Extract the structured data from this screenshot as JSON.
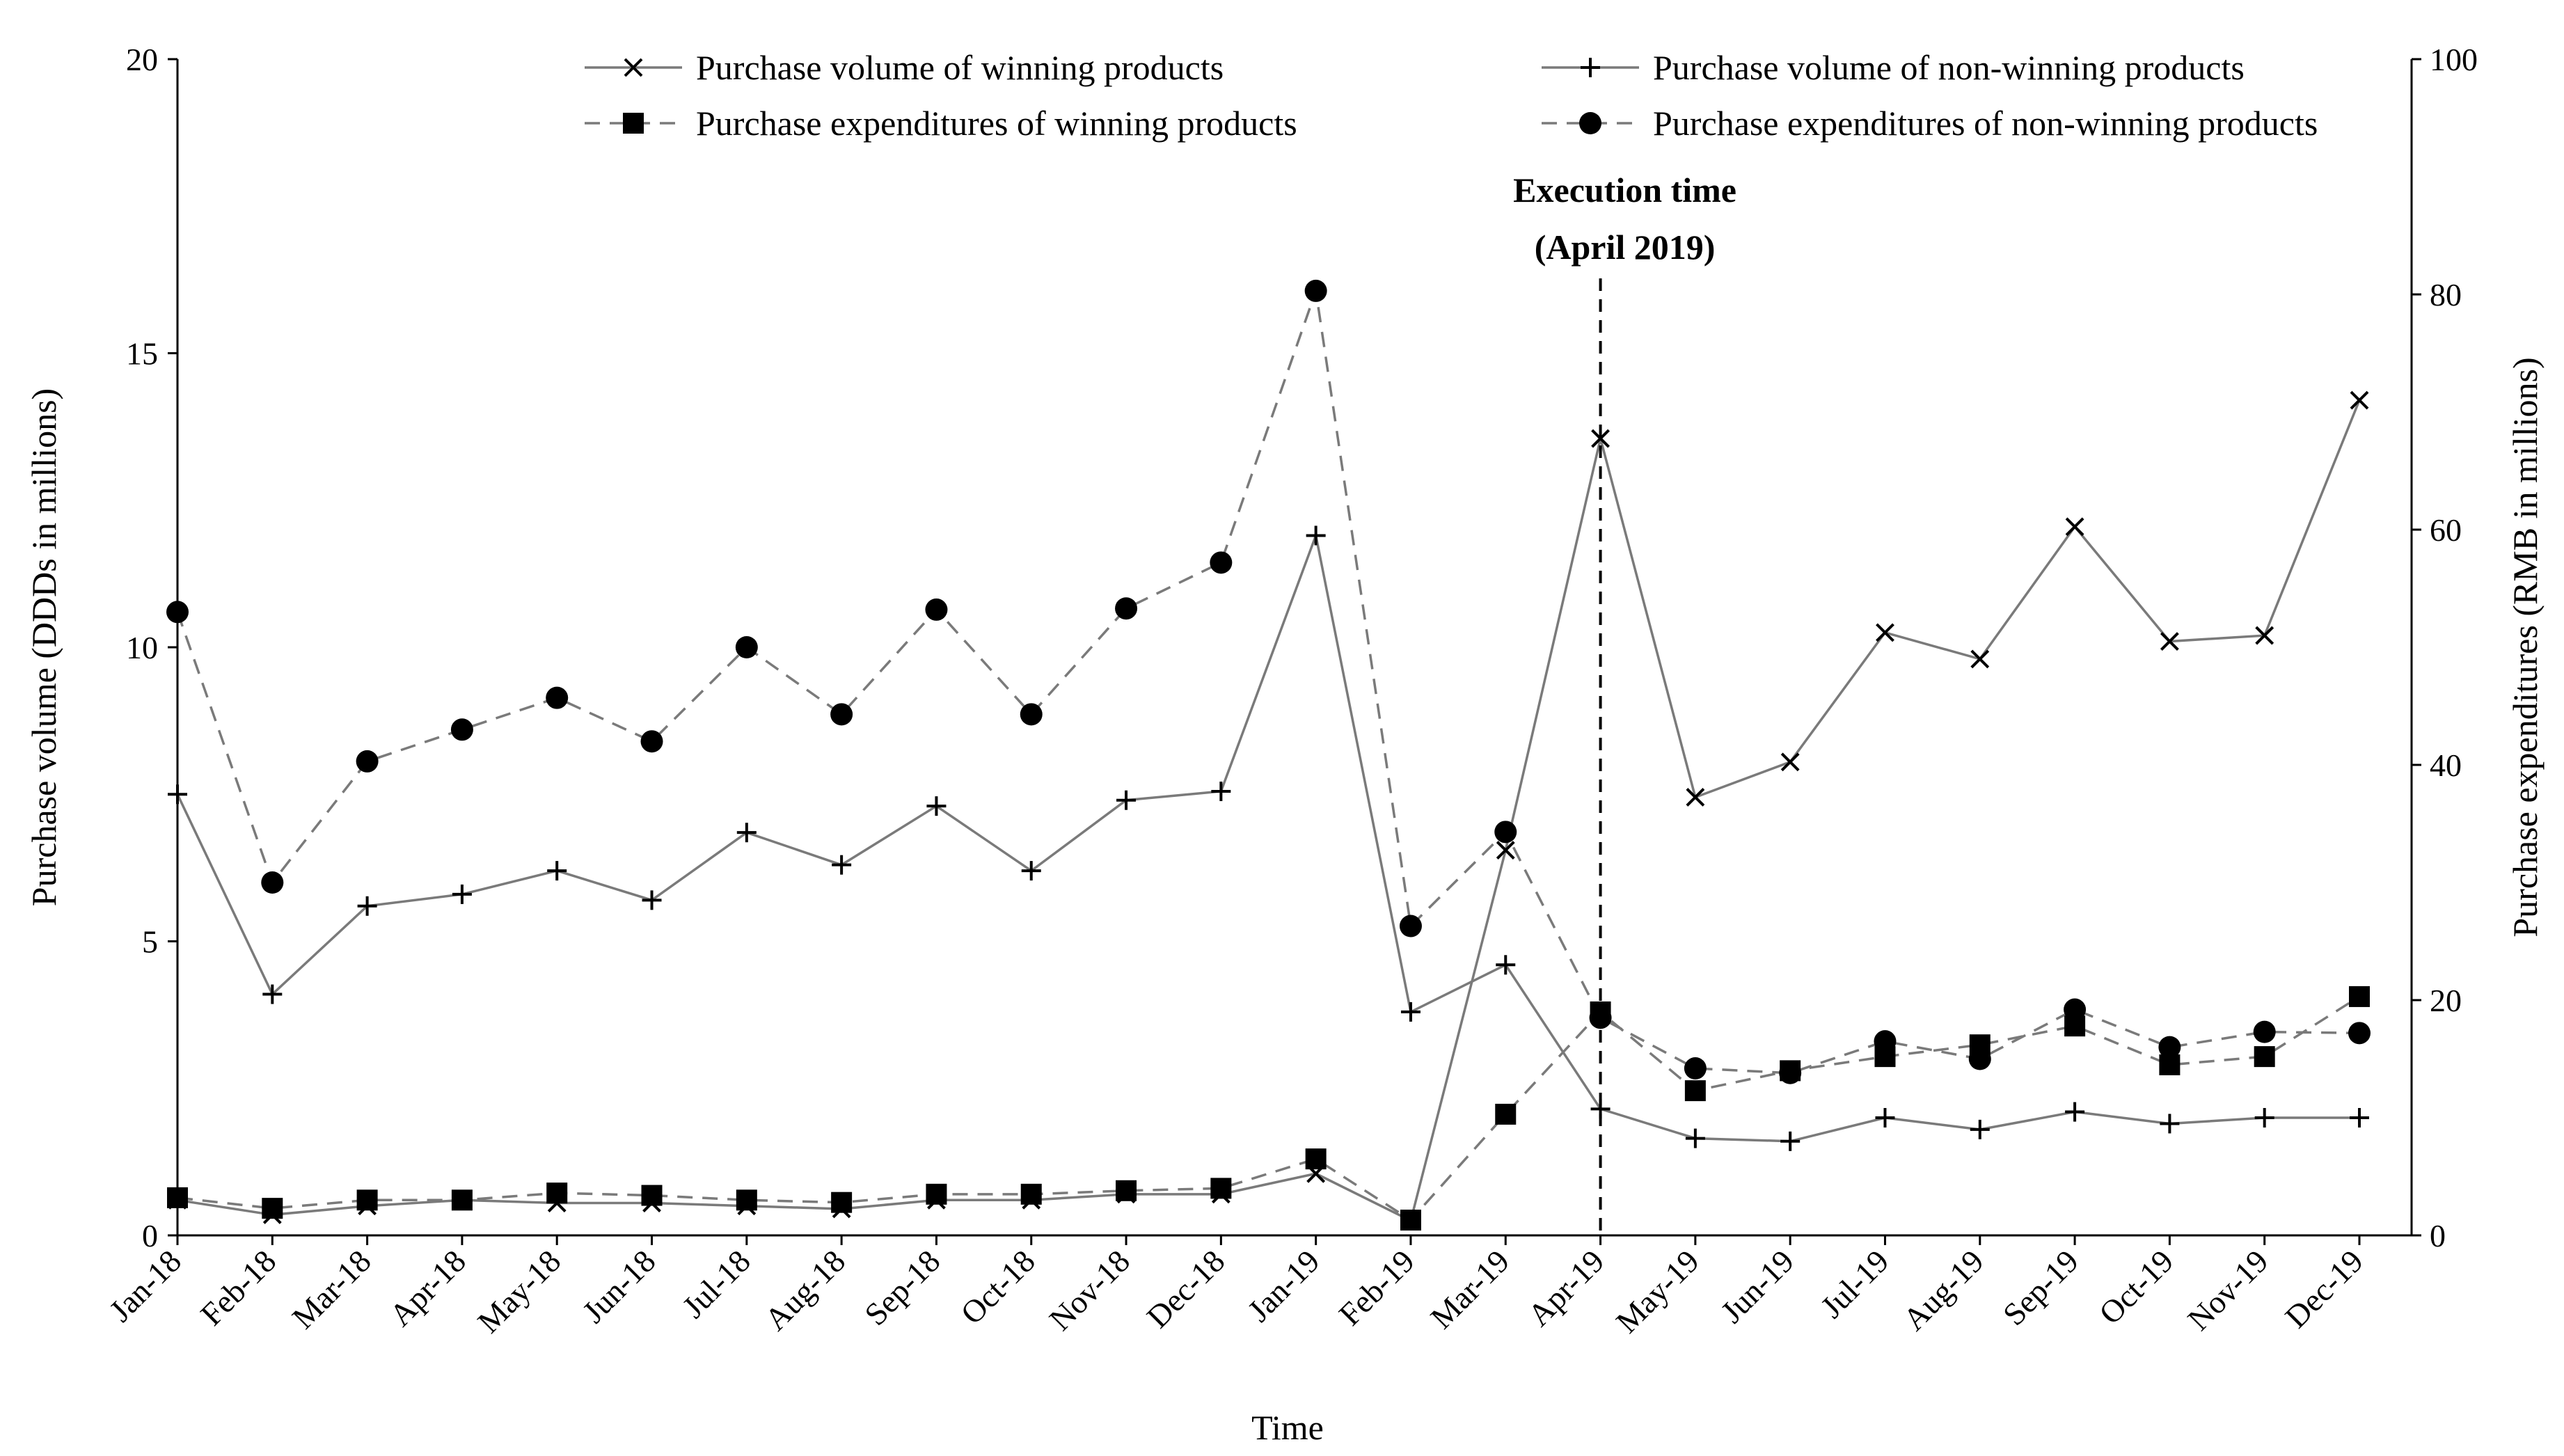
{
  "chart_data": {
    "type": "line",
    "xlabel": "Time",
    "ylabel_left": "Purchase volume  (DDDs in millions)",
    "ylabel_right": "Purchase expenditures  (RMB in millions)",
    "ylim_left": [
      0,
      20
    ],
    "ylim_right": [
      0,
      100
    ],
    "yticks_left": [
      "0",
      "5",
      "10",
      "15",
      "20"
    ],
    "yticks_right": [
      "0",
      "20",
      "40",
      "60",
      "80",
      "100"
    ],
    "grid": false,
    "legend_position": "top",
    "categories": [
      "Jan-18",
      "Feb-18",
      "Mar-18",
      "Apr-18",
      "May-18",
      "Jun-18",
      "Jul-18",
      "Aug-18",
      "Sep-18",
      "Oct-18",
      "Nov-18",
      "Dec-18",
      "Jan-19",
      "Feb-19",
      "Mar-19",
      "Apr-19",
      "May-19",
      "Jun-19",
      "Jul-19",
      "Aug-19",
      "Sep-19",
      "Oct-19",
      "Nov-19",
      "Dec-19"
    ],
    "series": [
      {
        "name": "Purchase volume of winning products",
        "axis": "left",
        "line": "solid",
        "marker": "x",
        "values": [
          0.6,
          0.35,
          0.5,
          0.6,
          0.55,
          0.55,
          0.5,
          0.45,
          0.6,
          0.6,
          0.7,
          0.7,
          1.05,
          0.25,
          6.55,
          13.55,
          7.45,
          8.05,
          10.25,
          9.8,
          12.05,
          10.1,
          10.2,
          14.2
        ]
      },
      {
        "name": "Purchase volume of non-winning products",
        "axis": "left",
        "line": "solid",
        "marker": "plus",
        "values": [
          7.5,
          4.1,
          5.6,
          5.8,
          6.2,
          5.7,
          6.85,
          6.3,
          7.3,
          6.2,
          7.4,
          7.55,
          11.9,
          3.8,
          4.6,
          2.15,
          1.65,
          1.6,
          2.0,
          1.8,
          2.1,
          1.9,
          2.0,
          2.0
        ]
      },
      {
        "name": "Purchase expenditures of winning products",
        "axis": "right",
        "line": "dashed",
        "marker": "square",
        "values": [
          3.2,
          2.3,
          3.0,
          3.0,
          3.6,
          3.4,
          3.0,
          2.8,
          3.5,
          3.5,
          3.8,
          4.0,
          6.5,
          1.3,
          10.3,
          19.0,
          12.3,
          14.0,
          15.2,
          16.2,
          17.8,
          14.5,
          15.2,
          20.3
        ]
      },
      {
        "name": "Purchase expenditures of non-winning products",
        "axis": "right",
        "line": "dashed",
        "marker": "circle",
        "values": [
          53.0,
          30.0,
          40.3,
          43.0,
          45.7,
          42.0,
          50.0,
          44.3,
          53.2,
          44.3,
          53.3,
          57.2,
          80.3,
          26.3,
          34.3,
          18.5,
          14.2,
          13.8,
          16.5,
          15.0,
          19.2,
          16.0,
          17.3,
          17.2
        ]
      }
    ],
    "annotation": {
      "category": "Apr-19",
      "line_1": "Execution time",
      "line_2": "(April 2019)"
    }
  }
}
